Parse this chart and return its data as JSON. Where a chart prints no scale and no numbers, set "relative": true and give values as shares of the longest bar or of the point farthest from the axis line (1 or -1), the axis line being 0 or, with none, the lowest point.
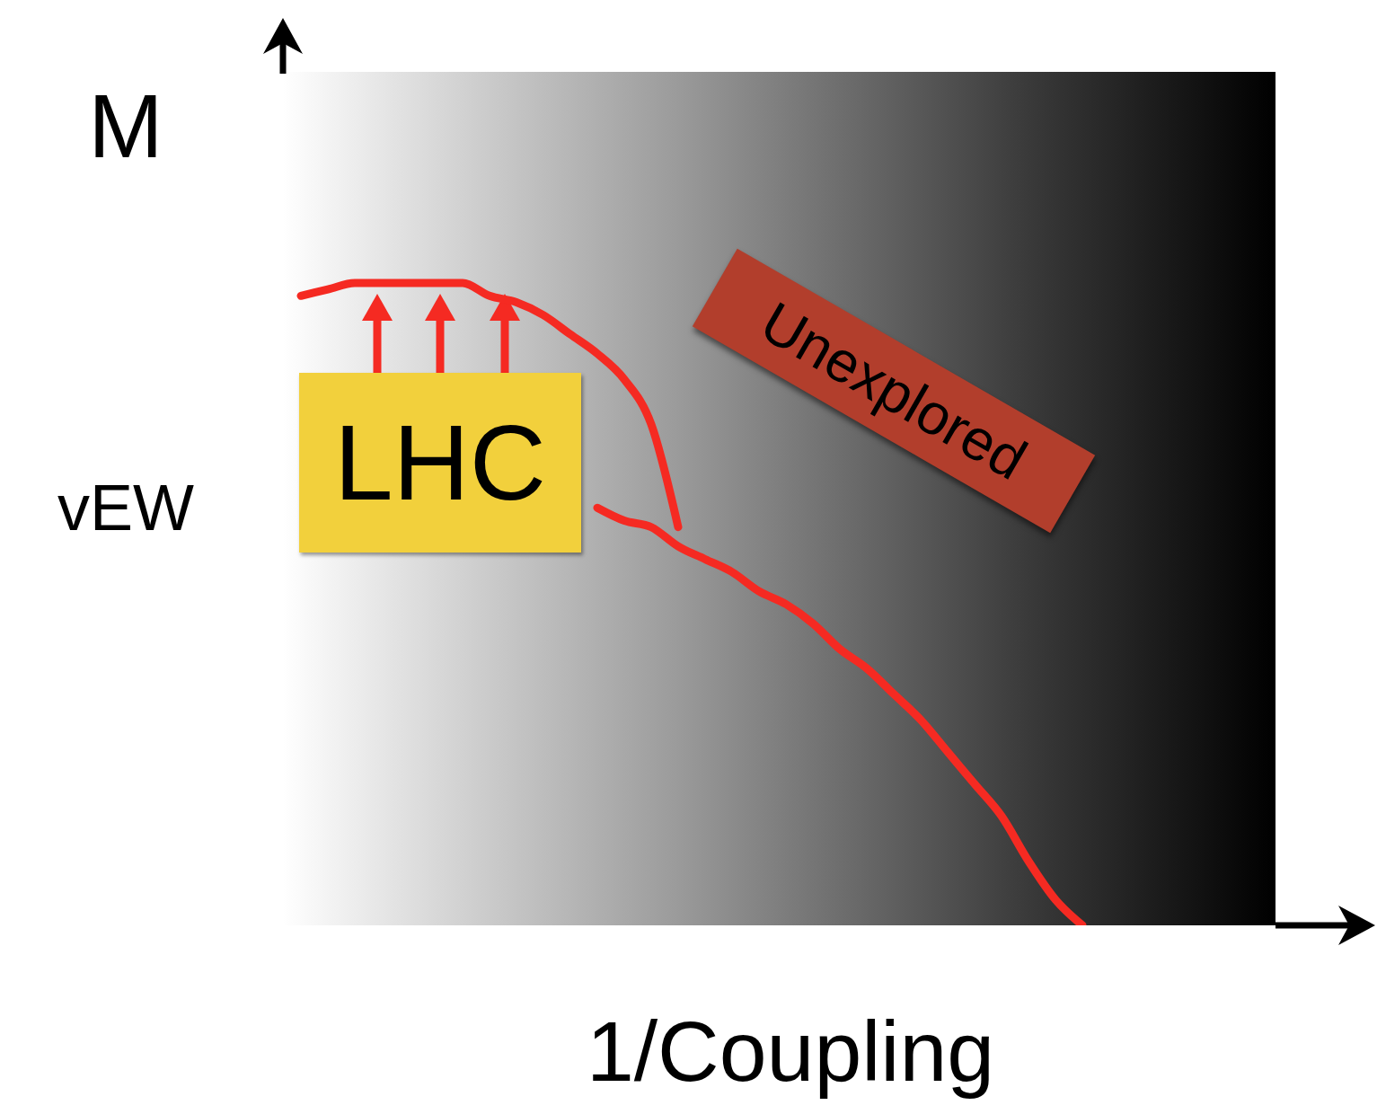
{
  "chart_data": {
    "type": "line",
    "relative": true,
    "xlabel": "1/Coupling",
    "ylabel": "M",
    "annotations": [
      "vEW",
      "LHC",
      "Unexplored"
    ],
    "categories": [
      null,
      null,
      null,
      null,
      null,
      null,
      null,
      null,
      null,
      null,
      null,
      null,
      null,
      null,
      null,
      null,
      null,
      null,
      null,
      null,
      null,
      null,
      null,
      null,
      null,
      null,
      null,
      null,
      null,
      null,
      null,
      null,
      null,
      null,
      null,
      null,
      null
    ],
    "series": [
      {
        "color": "#f52a22",
        "values": [
          0.98,
          0.99,
          1.0,
          1.0,
          1.0,
          1.0,
          1.0,
          0.98,
          0.97,
          0.95,
          0.92,
          0.89,
          0.85,
          0.78,
          0.62,
          null,
          null,
          null,
          null,
          null,
          null,
          null,
          null,
          null,
          null,
          null,
          null,
          null,
          null,
          null,
          null,
          null,
          null,
          null,
          null,
          null,
          null
        ]
      },
      {
        "color": "#f52a22",
        "values": [
          null,
          null,
          null,
          null,
          null,
          null,
          null,
          null,
          null,
          null,
          null,
          0.65,
          0.63,
          0.62,
          0.59,
          0.57,
          0.55,
          0.52,
          0.5,
          0.47,
          0.43,
          0.4,
          0.36,
          0.32,
          0.27,
          0.22,
          0.17,
          0.1,
          0.04,
          0,
          null,
          null,
          null,
          null,
          null,
          null,
          null
        ]
      }
    ],
    "grid": false,
    "marker": "none",
    "line_style": "solid"
  }
}
